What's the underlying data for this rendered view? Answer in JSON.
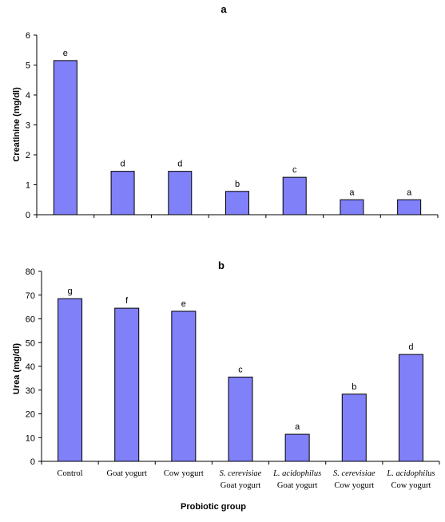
{
  "chart_data": [
    {
      "type": "bar",
      "title": "a",
      "ylabel": "Creatinine (mg/dl)",
      "xlabel": "",
      "ylim": [
        0,
        6
      ],
      "yticks": [
        0,
        1,
        2,
        3,
        4,
        5,
        6
      ],
      "grid": false,
      "values": [
        5.15,
        1.45,
        1.45,
        0.78,
        1.25,
        0.5,
        0.5
      ],
      "annotations": [
        "e",
        "d",
        "d",
        "b",
        "c",
        "a",
        "a"
      ]
    },
    {
      "type": "bar",
      "title": "b",
      "ylabel": "Urea (mg/dl)",
      "xlabel": "Probiotic group",
      "ylim": [
        0,
        80
      ],
      "yticks": [
        0,
        10,
        20,
        30,
        40,
        50,
        60,
        70,
        80
      ],
      "grid": false,
      "categories": [
        [
          "Control"
        ],
        [
          "Goat yogurt"
        ],
        [
          "Cow yogurt"
        ],
        [
          "S. cerevisiae",
          "Goat yogurt"
        ],
        [
          "L. acidophilus",
          "Goat yogurt"
        ],
        [
          "S. cerevisiae",
          "Cow yogurt"
        ],
        [
          "L. acidophilus",
          "Cow yogurt"
        ]
      ],
      "values": [
        68.5,
        64.5,
        63.2,
        35.5,
        11.4,
        28.3,
        45.0
      ],
      "annotations": [
        "g",
        "f",
        "e",
        "c",
        "a",
        "b",
        "d"
      ]
    }
  ]
}
